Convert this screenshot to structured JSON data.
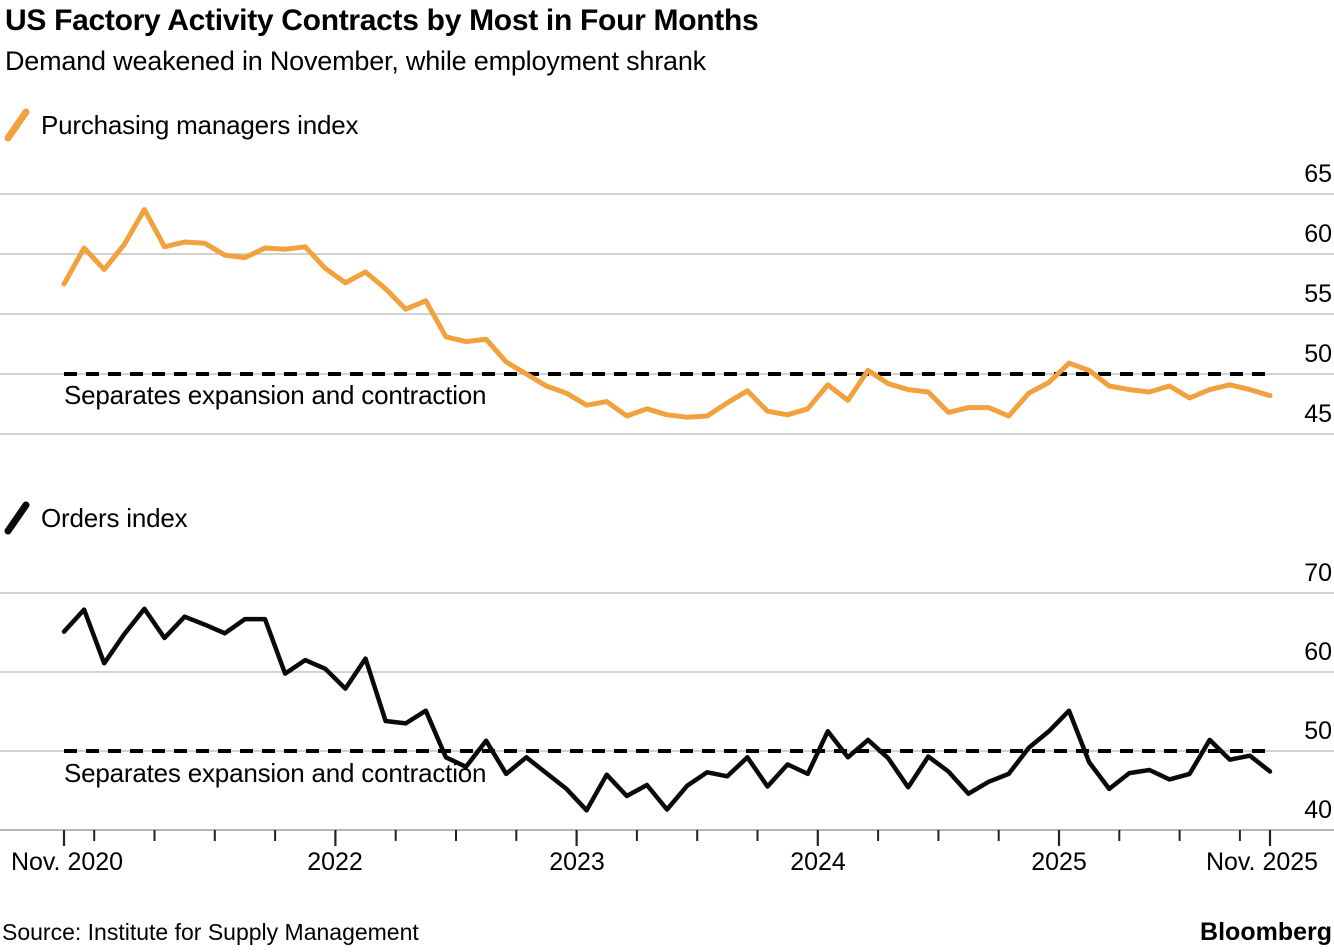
{
  "header": {
    "title": "US Factory Activity Contracts by Most in Four Months",
    "subtitle": "Demand weakened in November, while employment shrank"
  },
  "footer": {
    "source": "Source: Institute for Supply Management",
    "brand": "Bloomberg"
  },
  "colors": {
    "pmi_line": "#F1A13D",
    "orders_line": "#0a0a0a",
    "grid": "#cbcbcb",
    "axis": "#aaaaaa",
    "tick": "#222222",
    "threshold_dash": "#000000",
    "text": "#000000"
  },
  "chart_data": [
    {
      "type": "line",
      "legend": "Purchasing managers index",
      "series_color": "#F1A13D",
      "x_unit": "month",
      "x_range": [
        "Nov 2020",
        "Nov 2025"
      ],
      "x_tick_labels": [
        "Nov. 2020",
        "2022",
        "2023",
        "2024",
        "2025",
        "Nov. 2025"
      ],
      "y_ticks": [
        45,
        50,
        55,
        60,
        65
      ],
      "ylim": [
        44,
        66
      ],
      "grid": true,
      "legend_position": "top-left",
      "threshold": {
        "value": 50,
        "label": "Separates expansion and contraction"
      },
      "values": [
        57.5,
        60.5,
        58.7,
        60.8,
        63.7,
        60.6,
        61.0,
        60.9,
        59.9,
        59.7,
        60.5,
        60.4,
        60.6,
        58.8,
        57.6,
        58.5,
        57.1,
        55.4,
        56.1,
        53.1,
        52.7,
        52.9,
        51.0,
        50.0,
        49.0,
        48.4,
        47.4,
        47.7,
        46.5,
        47.1,
        46.6,
        46.4,
        46.5,
        47.6,
        48.6,
        46.9,
        46.6,
        47.1,
        49.1,
        47.8,
        50.3,
        49.2,
        48.7,
        48.5,
        46.8,
        47.2,
        47.2,
        46.5,
        48.4,
        49.3,
        50.9,
        50.3,
        49.0,
        48.7,
        48.5,
        49.0,
        48.0,
        48.7,
        49.1,
        48.7,
        48.2
      ]
    },
    {
      "type": "line",
      "legend": "Orders index",
      "series_color": "#0a0a0a",
      "x_unit": "month",
      "x_range": [
        "Nov 2020",
        "Nov 2025"
      ],
      "x_tick_labels": [
        "Nov. 2020",
        "2022",
        "2023",
        "2024",
        "2025",
        "Nov. 2025"
      ],
      "y_ticks": [
        40,
        50,
        60,
        70
      ],
      "ylim": [
        40,
        71
      ],
      "grid": true,
      "legend_position": "top-left",
      "threshold": {
        "value": 50,
        "label": "Separates expansion and contraction"
      },
      "values": [
        65.1,
        67.9,
        61.1,
        64.8,
        68.0,
        64.3,
        67.0,
        66.0,
        64.9,
        66.7,
        66.7,
        59.8,
        61.5,
        60.4,
        57.9,
        61.7,
        53.8,
        53.5,
        55.1,
        49.2,
        48.0,
        51.3,
        47.1,
        49.2,
        47.2,
        45.2,
        42.5,
        47.0,
        44.3,
        45.7,
        42.6,
        45.6,
        47.3,
        46.8,
        49.2,
        45.5,
        48.3,
        47.1,
        52.5,
        49.2,
        51.4,
        49.1,
        45.4,
        49.3,
        47.4,
        44.6,
        46.1,
        47.1,
        50.4,
        52.5,
        55.1,
        48.6,
        45.2,
        47.2,
        47.6,
        46.4,
        47.1,
        51.4,
        48.9,
        49.4,
        47.4
      ]
    }
  ]
}
